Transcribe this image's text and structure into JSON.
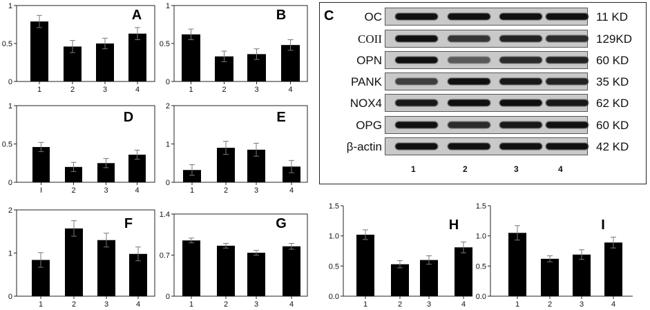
{
  "chart_data": [
    {
      "type": "bar",
      "panel": "A",
      "categories": [
        "1",
        "2",
        "3",
        "4"
      ],
      "values": [
        0.79,
        0.46,
        0.5,
        0.63
      ],
      "errors": [
        0.08,
        0.08,
        0.07,
        0.08
      ],
      "ylim": [
        0,
        1
      ],
      "yticks": [
        "0",
        "0.5",
        "1"
      ]
    },
    {
      "type": "bar",
      "panel": "B",
      "categories": [
        "1",
        "2",
        "3",
        "4"
      ],
      "values": [
        0.62,
        0.33,
        0.36,
        0.48
      ],
      "errors": [
        0.07,
        0.07,
        0.07,
        0.07
      ],
      "ylim": [
        0,
        1
      ],
      "yticks": [
        "0",
        "0.5",
        "1"
      ]
    },
    {
      "type": "bar",
      "panel": "D",
      "categories": [
        "I",
        "2",
        "3",
        "4"
      ],
      "values": [
        0.46,
        0.2,
        0.25,
        0.36
      ],
      "errors": [
        0.06,
        0.06,
        0.06,
        0.06
      ],
      "ylim": [
        0,
        1
      ],
      "yticks": [
        "0",
        "0.5",
        "1"
      ]
    },
    {
      "type": "bar",
      "panel": "E",
      "categories": [
        "1",
        "2",
        "3",
        "4"
      ],
      "values": [
        0.32,
        0.9,
        0.85,
        0.41
      ],
      "errors": [
        0.14,
        0.17,
        0.17,
        0.16
      ],
      "ylim": [
        0,
        2
      ],
      "yticks": [
        "0",
        "1",
        "2"
      ]
    },
    {
      "type": "bar",
      "panel": "F",
      "categories": [
        "1",
        "2",
        "3",
        "4"
      ],
      "values": [
        0.84,
        1.57,
        1.3,
        0.98
      ],
      "errors": [
        0.17,
        0.18,
        0.16,
        0.16
      ],
      "ylim": [
        0,
        2
      ],
      "yticks": [
        "0",
        "1",
        "2"
      ]
    },
    {
      "type": "bar",
      "panel": "G",
      "categories": [
        "1",
        "2",
        "3",
        "4"
      ],
      "values": [
        0.95,
        0.86,
        0.74,
        0.85
      ],
      "errors": [
        0.04,
        0.04,
        0.04,
        0.05
      ],
      "ylim": [
        0,
        1.4
      ],
      "yticks": [
        "0",
        "0.7",
        "1.4"
      ]
    },
    {
      "type": "bar",
      "panel": "H",
      "categories": [
        "1",
        "2",
        "3",
        "4"
      ],
      "values": [
        1.02,
        0.53,
        0.6,
        0.81
      ],
      "errors": [
        0.08,
        0.06,
        0.07,
        0.09
      ],
      "ylim": [
        0,
        1.5
      ],
      "yticks": [
        "0.0",
        "0.5",
        "1.0",
        "1.5"
      ]
    },
    {
      "type": "bar",
      "panel": "I",
      "categories": [
        "1",
        "2",
        "3",
        "4"
      ],
      "values": [
        1.05,
        0.62,
        0.69,
        0.89
      ],
      "errors": [
        0.12,
        0.05,
        0.08,
        0.09
      ],
      "ylim": [
        0,
        1.5
      ],
      "yticks": [
        "0.0",
        "0.5",
        "1.0",
        "1.5"
      ]
    }
  ],
  "blot": {
    "panel": "C",
    "lanes": [
      "1",
      "2",
      "3",
      "4"
    ],
    "rows": [
      {
        "protein": "OC",
        "size": "11 KD",
        "serif": false
      },
      {
        "protein": "COII",
        "size": "129KD",
        "serif": true
      },
      {
        "protein": "OPN",
        "size": "60 KD",
        "serif": false
      },
      {
        "protein": "PANK",
        "size": "35 KD",
        "serif": false
      },
      {
        "protein": "NOX4",
        "size": "62 KD",
        "serif": false
      },
      {
        "protein": "OPG",
        "size": "60 KD",
        "serif": false
      },
      {
        "protein": "β-actin",
        "size": "42 KD",
        "serif": false
      }
    ]
  }
}
